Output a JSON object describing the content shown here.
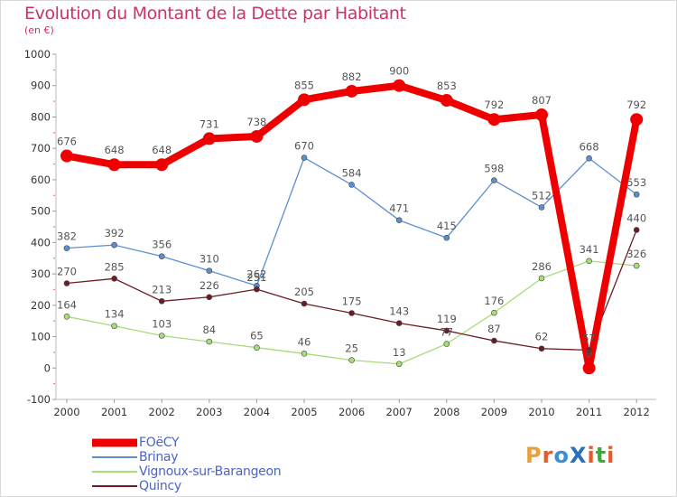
{
  "header": {
    "title": "Evolution du Montant de la Dette par Habitant",
    "subtitle": "(en €)"
  },
  "logo": {
    "text": "ProXiti",
    "colors": [
      "#e8a13a",
      "#e85a2a",
      "#3a8fd8",
      "#2a6fc0",
      "#e85a2a",
      "#3aaa3a",
      "#e85a2a"
    ]
  },
  "chart_data": {
    "type": "line",
    "title": "Evolution du Montant de la Dette par Habitant",
    "subtitle": "(en €)",
    "xlabel": "",
    "ylabel": "",
    "categories": [
      "2000",
      "2001",
      "2002",
      "2003",
      "2004",
      "2005",
      "2006",
      "2007",
      "2008",
      "2009",
      "2010",
      "2011",
      "2012"
    ],
    "ylim": [
      -100,
      1000
    ],
    "yticks": [
      -100,
      0,
      100,
      200,
      300,
      400,
      500,
      600,
      700,
      800,
      900,
      1000
    ],
    "grid": false,
    "legend_position": "bottom-left",
    "series": [
      {
        "name": "FOëCY",
        "color": "#ee0000",
        "width": 8,
        "values": [
          676,
          648,
          648,
          731,
          738,
          855,
          882,
          900,
          853,
          792,
          807,
          0,
          792
        ],
        "labels": [
          "676",
          "648",
          "648",
          "731",
          "738",
          "855",
          "882",
          "900",
          "853",
          "792",
          "807",
          "0",
          "792"
        ]
      },
      {
        "name": "Brinay",
        "color": "#5b8fd0",
        "width": 1.3,
        "values": [
          382,
          392,
          356,
          310,
          262,
          670,
          584,
          471,
          415,
          598,
          512,
          668,
          553
        ],
        "labels": [
          "382",
          "392",
          "356",
          "310",
          "262",
          "670",
          "584",
          "471",
          "415",
          "598",
          "512",
          "668",
          "553"
        ]
      },
      {
        "name": "Vignoux-sur-Barangeon",
        "color": "#a6dd7a",
        "width": 1.3,
        "values": [
          164,
          134,
          103,
          84,
          65,
          46,
          25,
          13,
          77,
          176,
          286,
          341,
          326
        ],
        "labels": [
          "164",
          "134",
          "103",
          "84",
          "65",
          "46",
          "25",
          "13",
          "77",
          "176",
          "286",
          "341",
          "326"
        ]
      },
      {
        "name": "Quincy",
        "color": "#6b1c24",
        "width": 1.3,
        "values": [
          270,
          285,
          213,
          226,
          251,
          205,
          175,
          143,
          119,
          87,
          62,
          57,
          440
        ],
        "labels": [
          "270",
          "285",
          "213",
          "226",
          "251",
          "205",
          "175",
          "143",
          "119",
          "87",
          "62",
          "57",
          "440"
        ]
      }
    ]
  }
}
